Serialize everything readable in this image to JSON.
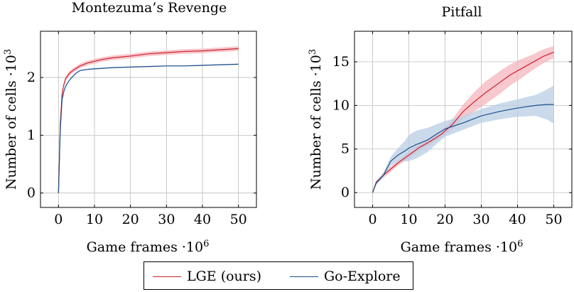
{
  "colors": {
    "lge": "#d0202e",
    "go": "#1b4f8a",
    "lge_band": "#f4b6bc",
    "go_band": "#b9cde4",
    "grid": "#bdbdbd"
  },
  "legend": {
    "lge": "LGE (ours)",
    "go": "Go-Explore"
  },
  "chart_data": [
    {
      "type": "line",
      "title": "Montezuma’s Revenge",
      "xlabel": "Game frames ·10",
      "xlabel_exp": "6",
      "ylabel": "Number of cells ·10",
      "ylabel_exp": "3",
      "xlim": [
        -5,
        55
      ],
      "ylim": [
        -0.25,
        2.8
      ],
      "xticks": [
        0,
        10,
        20,
        30,
        40,
        50
      ],
      "yticks": [
        0,
        1,
        2
      ],
      "xtick_labels": [
        "0",
        "10",
        "20",
        "30",
        "40",
        "50"
      ],
      "ytick_labels": [
        "0",
        "1",
        "2"
      ],
      "grid": true,
      "series": [
        {
          "name": "LGE (ours)",
          "x": [
            0,
            0.5,
            1,
            1.5,
            2,
            3,
            4,
            5,
            6,
            8,
            10,
            12,
            15,
            20,
            25,
            30,
            35,
            40,
            45,
            50
          ],
          "y": [
            0,
            1.2,
            1.72,
            1.88,
            1.98,
            2.07,
            2.12,
            2.16,
            2.2,
            2.25,
            2.28,
            2.31,
            2.34,
            2.37,
            2.41,
            2.43,
            2.45,
            2.46,
            2.48,
            2.5
          ],
          "band": [
            0.04,
            0.04,
            0.04,
            0.04,
            0.04,
            0.04,
            0.04,
            0.04,
            0.04,
            0.04,
            0.04,
            0.04,
            0.04,
            0.04,
            0.04,
            0.04,
            0.04,
            0.04,
            0.04,
            0.04
          ]
        },
        {
          "name": "Go-Explore",
          "x": [
            0,
            0.5,
            1,
            1.5,
            2,
            3,
            4,
            5,
            6,
            8,
            10,
            15,
            20,
            25,
            30,
            35,
            40,
            45,
            50
          ],
          "y": [
            0,
            1.1,
            1.62,
            1.76,
            1.85,
            1.95,
            2.02,
            2.08,
            2.12,
            2.14,
            2.15,
            2.17,
            2.18,
            2.19,
            2.2,
            2.2,
            2.21,
            2.22,
            2.23
          ],
          "band": [
            0.01,
            0.01,
            0.01,
            0.01,
            0.01,
            0.01,
            0.01,
            0.01,
            0.01,
            0.01,
            0.01,
            0.01,
            0.01,
            0.01,
            0.01,
            0.01,
            0.01,
            0.01,
            0.01
          ]
        }
      ]
    },
    {
      "type": "line",
      "title": "Pitfall",
      "xlabel": "Game frames ·10",
      "xlabel_exp": "6",
      "ylabel": "Number of cells ·10",
      "ylabel_exp": "3",
      "xlim": [
        -5,
        55
      ],
      "ylim": [
        -1.7,
        18.5
      ],
      "xticks": [
        0,
        10,
        20,
        30,
        40,
        50
      ],
      "yticks": [
        0,
        5,
        10,
        15
      ],
      "xtick_labels": [
        "0",
        "10",
        "20",
        "30",
        "40",
        "50"
      ],
      "ytick_labels": [
        "0",
        "5",
        "10",
        "15"
      ],
      "grid": true,
      "series": [
        {
          "name": "LGE (ours)",
          "x": [
            0,
            1,
            3,
            5,
            7,
            10,
            13,
            16,
            19,
            22,
            25,
            28,
            31,
            35,
            38,
            41,
            44,
            47,
            50
          ],
          "y": [
            0,
            1.2,
            2.0,
            2.7,
            3.4,
            4.3,
            5.2,
            5.9,
            6.7,
            7.8,
            9.3,
            10.4,
            11.4,
            12.6,
            13.5,
            14.2,
            14.9,
            15.6,
            16.1
          ],
          "band": [
            0.1,
            0.2,
            0.3,
            0.3,
            0.3,
            0.4,
            0.4,
            0.4,
            0.4,
            0.6,
            0.8,
            1.1,
            1.3,
            1.3,
            1.2,
            1.1,
            0.9,
            0.8,
            0.7
          ]
        },
        {
          "name": "Go-Explore",
          "x": [
            0,
            1,
            3,
            5,
            7,
            9,
            10,
            12,
            15,
            18,
            20,
            25,
            30,
            35,
            40,
            45,
            48,
            50
          ],
          "y": [
            0,
            1.1,
            2.0,
            3.6,
            4.3,
            4.8,
            5.1,
            5.5,
            6.0,
            6.8,
            7.3,
            8.0,
            8.8,
            9.3,
            9.7,
            10.0,
            10.1,
            10.1
          ],
          "band": [
            0.1,
            0.2,
            0.3,
            0.5,
            0.8,
            1.2,
            1.5,
            1.6,
            1.4,
            1.1,
            0.9,
            0.8,
            0.8,
            0.9,
            1.0,
            1.2,
            1.7,
            2.2
          ]
        }
      ]
    }
  ]
}
